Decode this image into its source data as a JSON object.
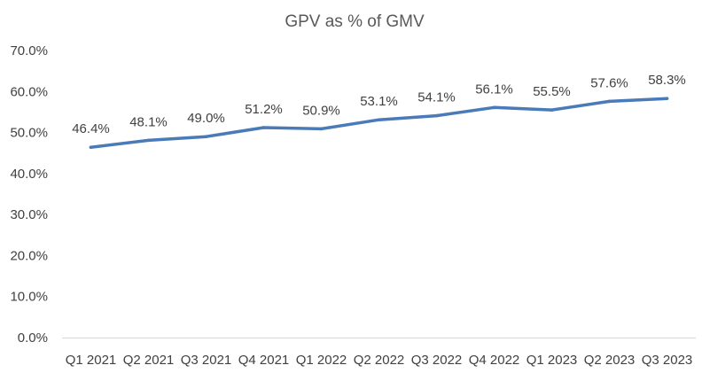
{
  "chart_data": {
    "type": "line",
    "title": "GPV as % of GMV",
    "xlabel": "",
    "ylabel": "",
    "categories": [
      "Q1 2021",
      "Q2 2021",
      "Q3 2021",
      "Q4 2021",
      "Q1 2022",
      "Q2 2022",
      "Q3 2022",
      "Q4 2022",
      "Q1 2023",
      "Q2 2023",
      "Q3 2023"
    ],
    "series": [
      {
        "name": "GPV as % of GMV",
        "values": [
          46.4,
          48.1,
          49.0,
          51.2,
          50.9,
          53.1,
          54.1,
          56.1,
          55.5,
          57.6,
          58.3
        ],
        "labels": [
          "46.4%",
          "48.1%",
          "49.0%",
          "51.2%",
          "50.9%",
          "53.1%",
          "54.1%",
          "56.1%",
          "55.5%",
          "57.6%",
          "58.3%"
        ],
        "color": "#4a7ab8"
      }
    ],
    "ylim": [
      0,
      70
    ],
    "yticks": [
      0,
      10,
      20,
      30,
      40,
      50,
      60,
      70
    ],
    "ytick_labels": [
      "0.0%",
      "10.0%",
      "20.0%",
      "30.0%",
      "40.0%",
      "50.0%",
      "60.0%",
      "70.0%"
    ],
    "grid": false,
    "legend": "none",
    "axis_color": "#d9d9d9"
  }
}
